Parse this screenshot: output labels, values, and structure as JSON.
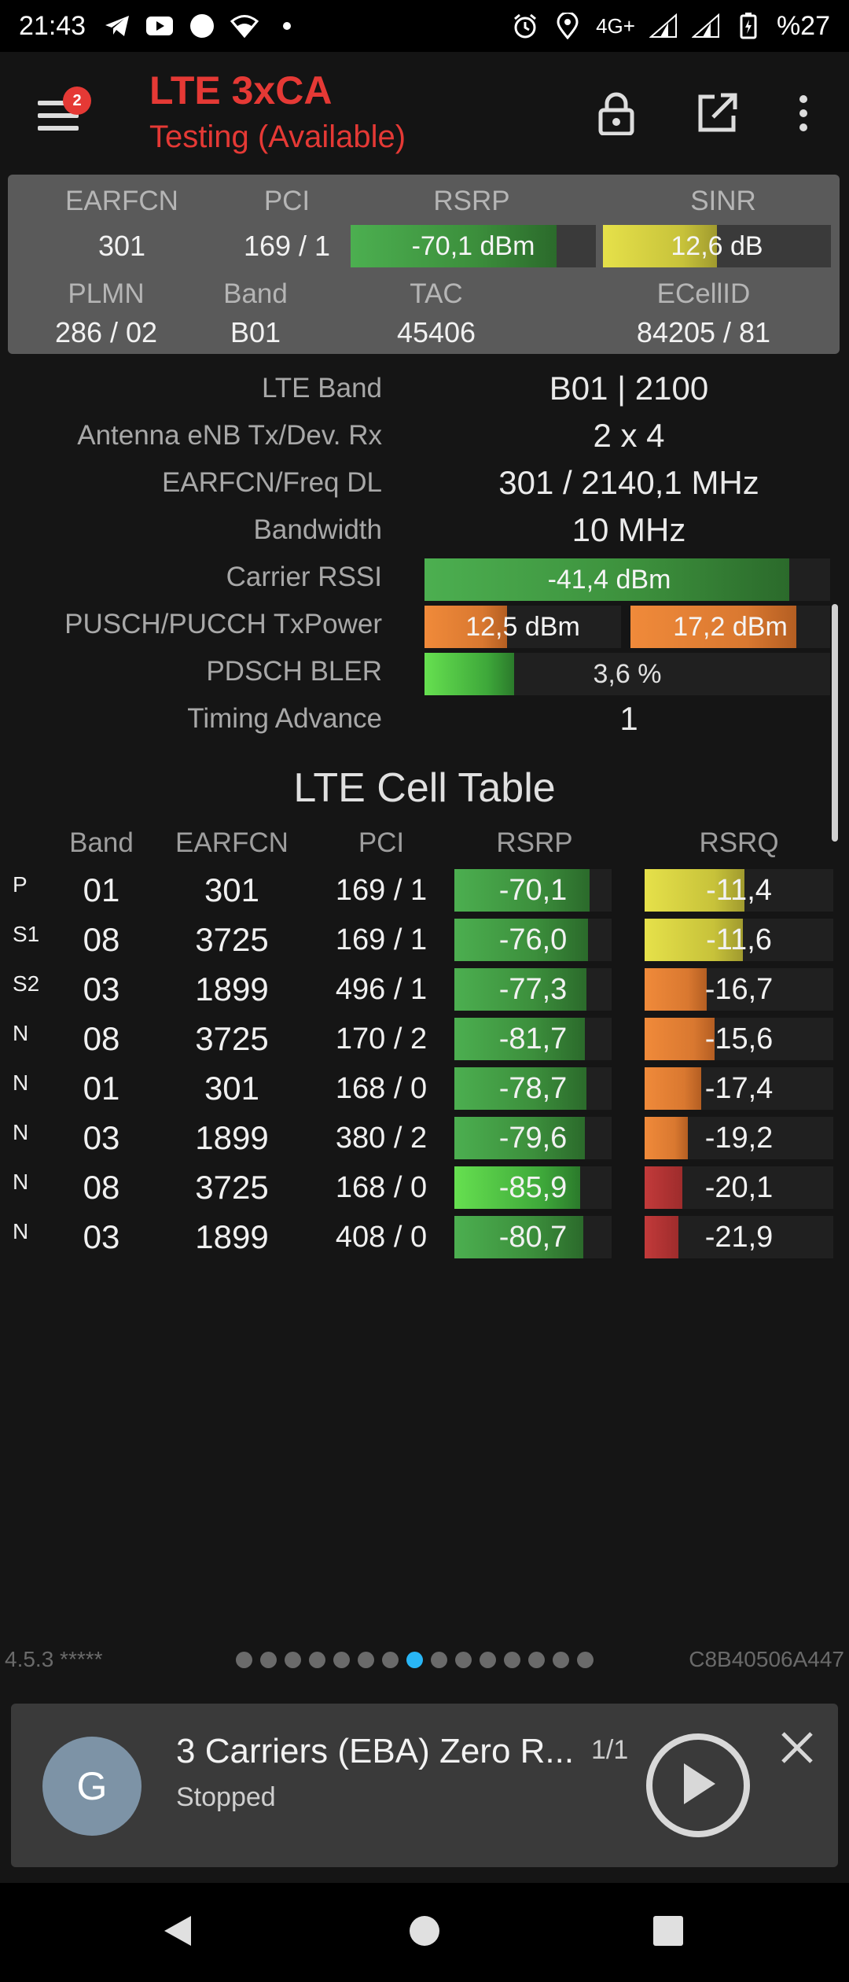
{
  "status_bar": {
    "time": "21:43",
    "network": "4G+",
    "battery": "%27",
    "icons_left": [
      "telegram-icon",
      "youtube-icon",
      "circle-icon",
      "wifi-icon",
      "dot-icon"
    ],
    "icons_right": [
      "alarm-icon",
      "location-icon",
      "signal-icon",
      "signal-icon",
      "battery-icon"
    ]
  },
  "app_bar": {
    "badge_count": "2",
    "title": "LTE 3xCA",
    "subtitle": "Testing (Available)",
    "actions": [
      "lock-icon",
      "open-external-icon",
      "more-vert-icon"
    ]
  },
  "summary": {
    "labels": {
      "earfcn": "EARFCN",
      "pci": "PCI",
      "rsrp": "RSRP",
      "sinr": "SINR",
      "plmn": "PLMN",
      "band": "Band",
      "tac": "TAC",
      "ecellid": "ECellID"
    },
    "values": {
      "earfcn": "301",
      "pci": "169 / 1",
      "rsrp": "-70,1 dBm",
      "sinr": "12,6 dB",
      "plmn": "286 / 02",
      "band": "B01",
      "tac": "45406",
      "ecellid": "84205 / 81"
    },
    "rsrp_level": 0.84,
    "sinr_level": 0.5
  },
  "details": {
    "lte_band_label": "LTE Band",
    "lte_band_value": "B01 | 2100",
    "antenna_label": "Antenna eNB Tx/Dev. Rx",
    "antenna_value": "2 x 4",
    "earfcn_freq_label": "EARFCN/Freq DL",
    "earfcn_freq_value": "301 / 2140,1 MHz",
    "bandwidth_label": "Bandwidth",
    "bandwidth_value": "10 MHz",
    "rssi_label": "Carrier RSSI",
    "rssi_value": "-41,4 dBm",
    "rssi_level": 0.9,
    "txpower_label": "PUSCH/PUCCH TxPower",
    "pusch_value": "12,5 dBm",
    "pucch_value": "17,2 dBm",
    "pusch_level": 0.42,
    "pucch_level": 0.83,
    "bler_label": "PDSCH BLER",
    "bler_value": "3,6 %",
    "bler_level": 0.22,
    "ta_label": "Timing Advance",
    "ta_value": "1"
  },
  "cell_table": {
    "title": "LTE Cell Table",
    "headers": {
      "band": "Band",
      "earfcn": "EARFCN",
      "pci": "PCI",
      "rsrp": "RSRP",
      "rsrq": "RSRQ"
    },
    "rows": [
      {
        "type": "P",
        "band": "01",
        "earfcn": "301",
        "pci": "169 / 1",
        "rsrp": "-70,1",
        "rsrq": "-11,4",
        "rsrp_level": 0.86,
        "rsrq_level": 0.53,
        "rsrp_color": "green",
        "rsrq_color": "yellow"
      },
      {
        "type": "S1",
        "band": "08",
        "earfcn": "3725",
        "pci": "169 / 1",
        "rsrp": "-76,0",
        "rsrq": "-11,6",
        "rsrp_level": 0.85,
        "rsrq_level": 0.52,
        "rsrp_color": "green",
        "rsrq_color": "yellow"
      },
      {
        "type": "S2",
        "band": "03",
        "earfcn": "1899",
        "pci": "496 / 1",
        "rsrp": "-77,3",
        "rsrq": "-16,7",
        "rsrp_level": 0.84,
        "rsrq_level": 0.33,
        "rsrp_color": "green",
        "rsrq_color": "orange"
      },
      {
        "type": "N",
        "band": "08",
        "earfcn": "3725",
        "pci": "170 / 2",
        "rsrp": "-81,7",
        "rsrq": "-15,6",
        "rsrp_level": 0.83,
        "rsrq_level": 0.37,
        "rsrp_color": "green",
        "rsrq_color": "orange"
      },
      {
        "type": "N",
        "band": "01",
        "earfcn": "301",
        "pci": "168 / 0",
        "rsrp": "-78,7",
        "rsrq": "-17,4",
        "rsrp_level": 0.84,
        "rsrq_level": 0.3,
        "rsrp_color": "green",
        "rsrq_color": "orange"
      },
      {
        "type": "N",
        "band": "03",
        "earfcn": "1899",
        "pci": "380 / 2",
        "rsrp": "-79,6",
        "rsrq": "-19,2",
        "rsrp_level": 0.83,
        "rsrq_level": 0.23,
        "rsrp_color": "green",
        "rsrq_color": "orange"
      },
      {
        "type": "N",
        "band": "08",
        "earfcn": "3725",
        "pci": "168 / 0",
        "rsrp": "-85,9",
        "rsrq": "-20,1",
        "rsrp_level": 0.8,
        "rsrq_level": 0.2,
        "rsrp_color": "green-bright",
        "rsrq_color": "red"
      },
      {
        "type": "N",
        "band": "03",
        "earfcn": "1899",
        "pci": "408 / 0",
        "rsrp": "-80,7",
        "rsrq": "-21,9",
        "rsrp_level": 0.82,
        "rsrq_level": 0.18,
        "rsrp_color": "green",
        "rsrq_color": "red"
      }
    ]
  },
  "footer": {
    "version": "4.5.3 *****",
    "device_id": "C8B40506A447",
    "page_count": 15,
    "active_page": 8
  },
  "player": {
    "avatar_letter": "G",
    "title": "3 Carriers (EBA) Zero R...",
    "count": "1/1",
    "status": "Stopped"
  },
  "colors": {
    "accent": "#e53935",
    "active_dot": "#29b6f6"
  }
}
